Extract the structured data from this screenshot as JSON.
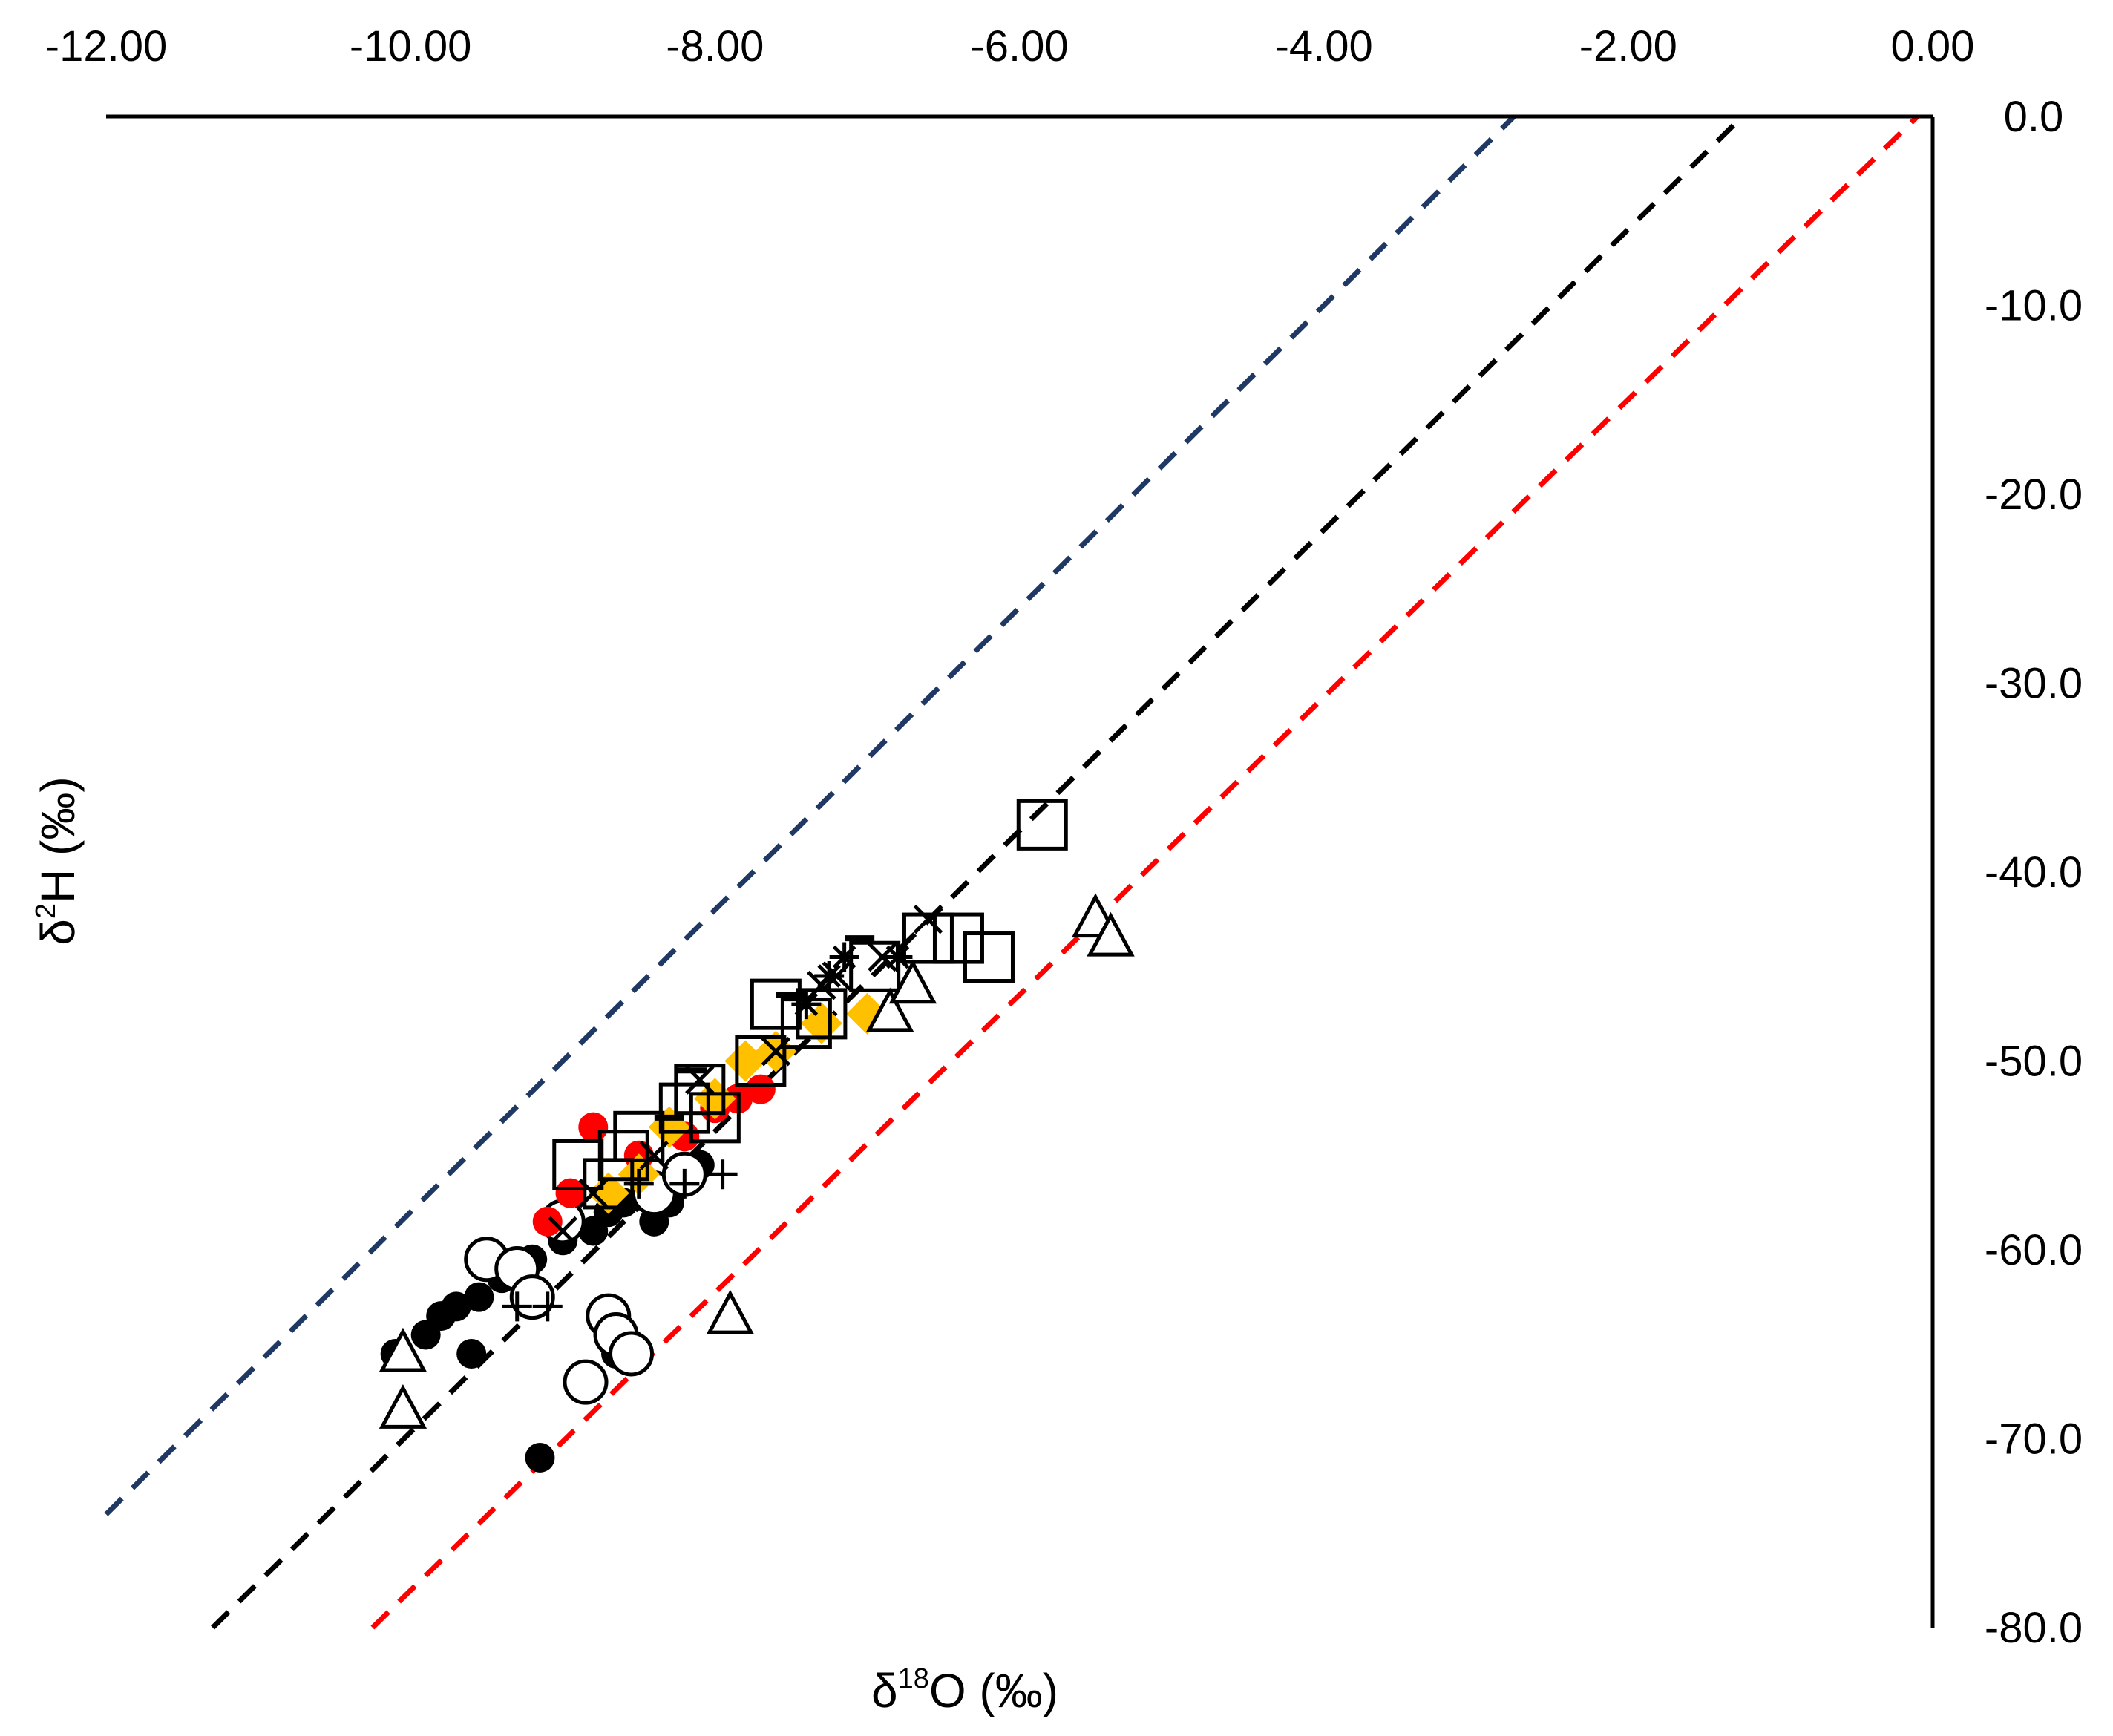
{
  "chart_data": {
    "type": "scatter",
    "xlabel": "δ18O (‰)",
    "ylabel": "δ2H (‰)",
    "xlabel_parts": {
      "symbol": "δ",
      "sup": "18",
      "rest": "O (‰)"
    },
    "ylabel_parts": {
      "symbol": "δ",
      "sup": "2",
      "rest": "H (‰)"
    },
    "xlim": [
      -12,
      0
    ],
    "ylim": [
      -80,
      0
    ],
    "x_axis_position": "top",
    "y_axis_position": "right",
    "grid": false,
    "x_ticks": [
      -12,
      -10,
      -8,
      -6,
      -4,
      -2,
      0
    ],
    "y_ticks": [
      0,
      -10,
      -20,
      -30,
      -40,
      -50,
      -60,
      -70,
      -80
    ],
    "x_tick_labels": [
      "-12.00",
      "-10.00",
      "-8.00",
      "-6.00",
      "-4.00",
      "-2.00",
      "0.00"
    ],
    "y_tick_labels": [
      "0.0",
      "-10.0",
      "-20.0",
      "-30.0",
      "-40.0",
      "-50.0",
      "-60.0",
      "-70.0",
      "-80.0"
    ],
    "reference_lines": [
      {
        "color": "#1f3864",
        "style": "dashed",
        "x": [
          -12,
          -2.75
        ],
        "y": [
          -74.0,
          0
        ]
      },
      {
        "color": "#000000",
        "style": "dashed",
        "x": [
          -11.3,
          -1.25
        ],
        "y": [
          -80,
          0
        ]
      },
      {
        "color": "#ff0000",
        "style": "dashed",
        "x": [
          -10.25,
          -0.1
        ],
        "y": [
          -80,
          0
        ]
      }
    ],
    "series": [
      {
        "marker": "filled-circle",
        "color": "#000000",
        "points": [
          [
            -10.1,
            -65.5
          ],
          [
            -9.9,
            -64.5
          ],
          [
            -9.8,
            -63.5
          ],
          [
            -9.7,
            -63.0
          ],
          [
            -9.6,
            -65.5
          ],
          [
            -9.55,
            -62.5
          ],
          [
            -9.4,
            -61.5
          ],
          [
            -9.2,
            -60.5
          ],
          [
            -9.15,
            -71.0
          ],
          [
            -9.0,
            -59.5
          ],
          [
            -8.8,
            -59.0
          ],
          [
            -8.7,
            -58.0
          ],
          [
            -8.6,
            -57.5
          ],
          [
            -8.4,
            -58.5
          ],
          [
            -8.3,
            -57.5
          ],
          [
            -8.1,
            -55.5
          ],
          [
            -8.7,
            -63.5
          ],
          [
            -8.65,
            -65.5
          ],
          [
            -8.55,
            -65.0
          ]
        ]
      },
      {
        "marker": "open-circle",
        "color": "#000000",
        "points": [
          [
            -9.5,
            -60.5
          ],
          [
            -9.3,
            -61.0
          ],
          [
            -9.2,
            -62.5
          ],
          [
            -9.0,
            -58.5
          ],
          [
            -8.85,
            -67.0
          ],
          [
            -8.7,
            -63.5
          ],
          [
            -8.65,
            -64.5
          ],
          [
            -8.55,
            -65.5
          ],
          [
            -8.4,
            -57.0
          ],
          [
            -8.2,
            -56.0
          ]
        ]
      },
      {
        "marker": "red-circle",
        "color": "#ff0000",
        "points": [
          [
            -9.1,
            -58.5
          ],
          [
            -8.95,
            -57.0
          ],
          [
            -8.8,
            -53.5
          ],
          [
            -8.5,
            -55.0
          ],
          [
            -8.2,
            -54.0
          ],
          [
            -8.0,
            -52.5
          ],
          [
            -7.85,
            -52.0
          ],
          [
            -7.7,
            -51.5
          ]
        ]
      },
      {
        "marker": "orange-diamond",
        "color": "#ffc000",
        "points": [
          [
            -8.7,
            -57.0
          ],
          [
            -8.5,
            -56.0
          ],
          [
            -8.3,
            -53.5
          ],
          [
            -8.0,
            -52.0
          ],
          [
            -7.8,
            -50.0
          ],
          [
            -7.6,
            -49.5
          ],
          [
            -7.3,
            -48.0
          ],
          [
            -7.0,
            -47.5
          ]
        ]
      },
      {
        "marker": "open-square",
        "color": "#000000",
        "points": [
          [
            -5.85,
            -37.5
          ],
          [
            -6.6,
            -43.5
          ],
          [
            -6.4,
            -43.5
          ],
          [
            -6.2,
            -44.5
          ],
          [
            -6.95,
            -45.0
          ],
          [
            -7.6,
            -47.0
          ],
          [
            -7.4,
            -48.0
          ],
          [
            -7.7,
            -50.0
          ],
          [
            -8.1,
            -51.5
          ],
          [
            -8.2,
            -52.5
          ],
          [
            -8.5,
            -54.0
          ],
          [
            -8.6,
            -55.0
          ],
          [
            -8.9,
            -55.5
          ],
          [
            -8.7,
            -56.5
          ],
          [
            -8.0,
            -53.0
          ],
          [
            -7.3,
            -47.5
          ]
        ]
      },
      {
        "marker": "open-triangle",
        "color": "#000000",
        "points": [
          [
            -10.05,
            -65.5
          ],
          [
            -10.05,
            -68.5
          ],
          [
            -7.9,
            -63.5
          ],
          [
            -5.5,
            -42.5
          ],
          [
            -5.4,
            -43.5
          ],
          [
            -6.85,
            -47.5
          ],
          [
            -6.7,
            -46.0
          ]
        ]
      },
      {
        "marker": "x-cross",
        "color": "#000000",
        "points": [
          [
            -6.6,
            -42.5
          ],
          [
            -7.2,
            -45.5
          ],
          [
            -7.3,
            -46.0
          ],
          [
            -6.9,
            -44.5
          ],
          [
            -7.6,
            -49.5
          ],
          [
            -8.1,
            -51.0
          ],
          [
            -8.4,
            -55.0
          ],
          [
            -8.8,
            -57.0
          ],
          [
            -9.0,
            -59.0
          ]
        ]
      },
      {
        "marker": "plus",
        "color": "#000000",
        "points": [
          [
            -7.95,
            -56.0
          ],
          [
            -8.2,
            -56.5
          ],
          [
            -9.3,
            -63.0
          ],
          [
            -9.1,
            -63.0
          ],
          [
            -8.5,
            -56.5
          ]
        ]
      },
      {
        "marker": "asterisk",
        "color": "#000000",
        "points": [
          [
            -7.25,
            -45.5
          ],
          [
            -7.15,
            -44.5
          ],
          [
            -7.4,
            -47.0
          ],
          [
            -6.8,
            -44.5
          ]
        ]
      },
      {
        "marker": "dash",
        "color": "#000000",
        "points": [
          [
            -7.05,
            -43.5
          ],
          [
            -7.5,
            -46.5
          ],
          [
            -8.15,
            -50.5
          ],
          [
            -8.3,
            -53.0
          ]
        ]
      }
    ]
  }
}
